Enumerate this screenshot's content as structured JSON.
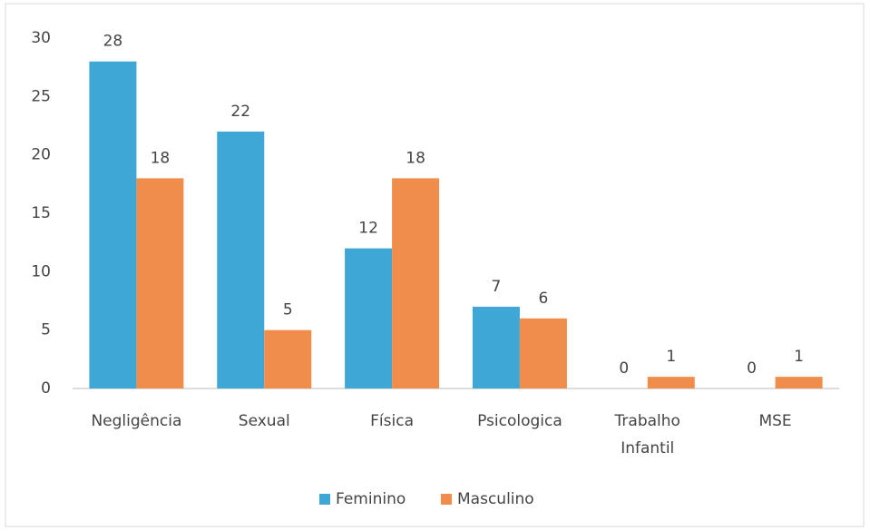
{
  "chart_data": {
    "type": "bar",
    "categories": [
      "Negligência",
      "Sexual",
      "Física",
      "Psicologica",
      "Trabalho Infantil",
      "MSE"
    ],
    "series": [
      {
        "name": "Feminino",
        "color": "#3fa7d6",
        "values": [
          28,
          22,
          12,
          7,
          0,
          0
        ]
      },
      {
        "name": "Masculino",
        "color": "#f08d4b",
        "values": [
          18,
          5,
          18,
          6,
          1,
          1
        ]
      }
    ],
    "ylim": [
      0,
      30
    ],
    "yticks": [
      0,
      5,
      10,
      15,
      20,
      25,
      30
    ],
    "grid": false,
    "legend": "bottom"
  }
}
